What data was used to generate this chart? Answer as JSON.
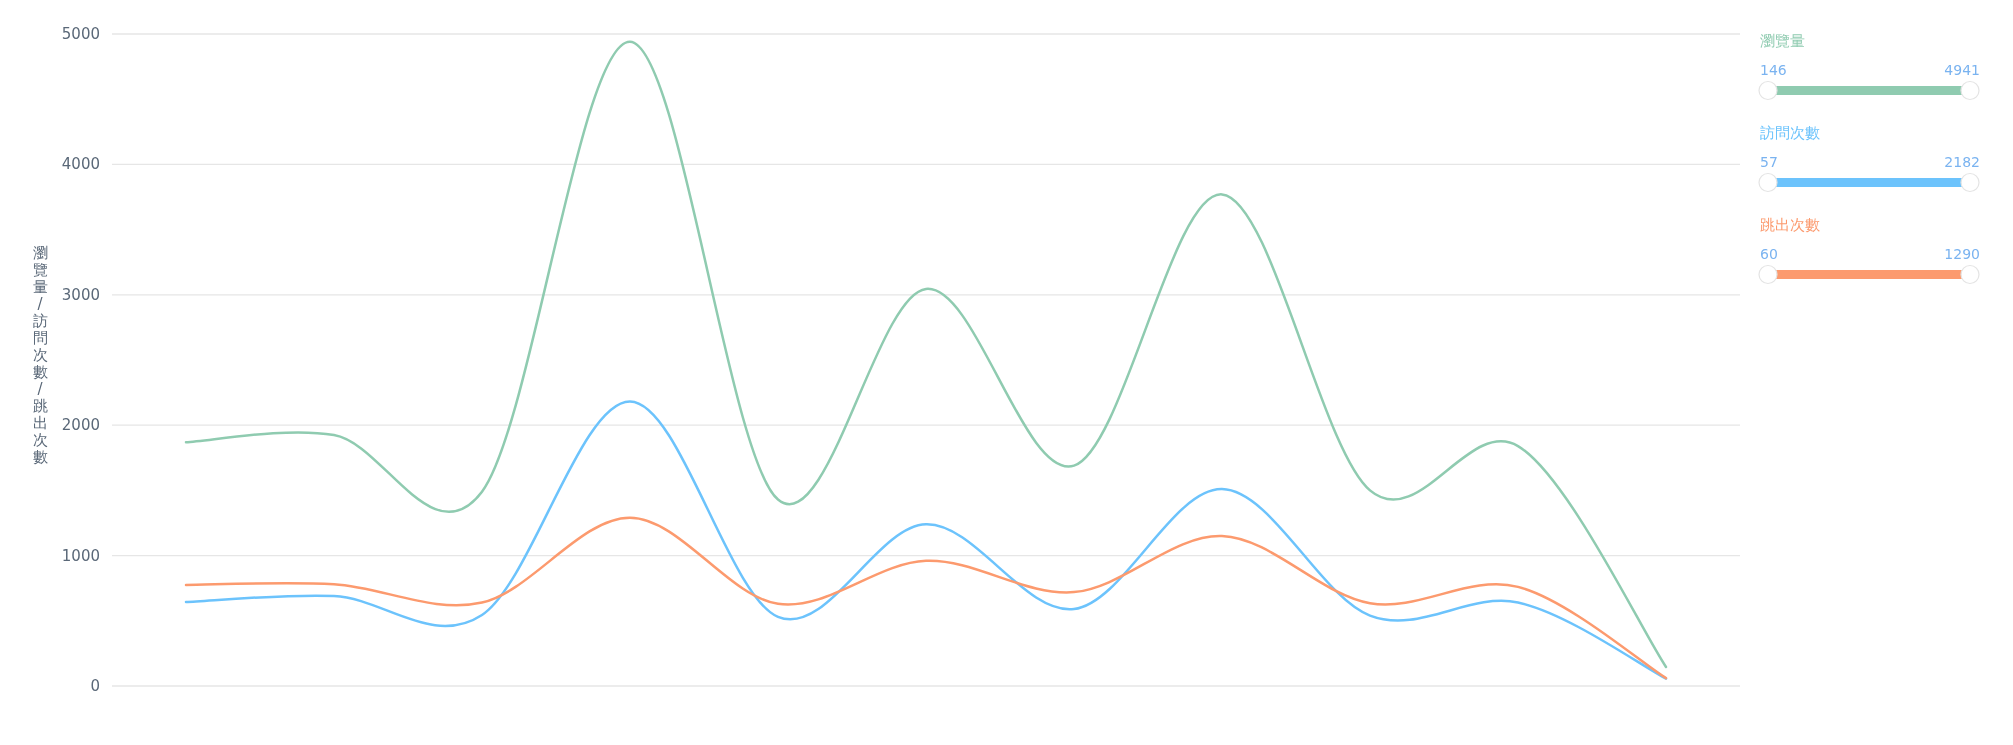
{
  "chart_data": {
    "type": "line",
    "ylabel": "瀏覽量/訪問次數/跳出次數",
    "categories": [
      null,
      null,
      null,
      null,
      null,
      null,
      null,
      null,
      null,
      null,
      null
    ],
    "series": [
      {
        "name": "瀏覽量",
        "color": "#8fcbb0",
        "values": [
          1870,
          1925,
          1490,
          4941,
          1430,
          3045,
          1690,
          3770,
          1500,
          1840,
          146
        ]
      },
      {
        "name": "訪問次數",
        "color": "#6cc3fc",
        "values": [
          645,
          690,
          545,
          2182,
          530,
          1240,
          590,
          1510,
          540,
          640,
          57
        ]
      },
      {
        "name": "跳出次數",
        "color": "#fc9a6e",
        "values": [
          775,
          780,
          640,
          1290,
          630,
          960,
          720,
          1150,
          635,
          760,
          60
        ]
      }
    ],
    "annotations": [
      "146",
      "4941",
      "57",
      "2182",
      "60",
      "1290"
    ],
    "ylim": [
      0,
      5000
    ],
    "yticks": [
      0,
      1000,
      2000,
      3000,
      4000,
      5000
    ],
    "grid": "y",
    "legend": "top right",
    "marker": "none",
    "line_style": "solid"
  }
}
